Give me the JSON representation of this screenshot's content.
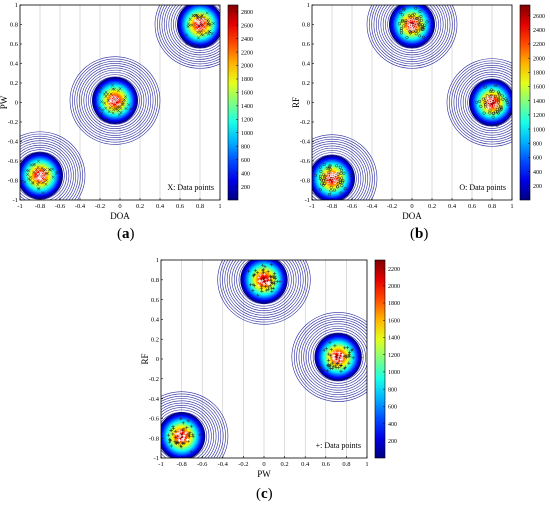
{
  "chart_data": [
    {
      "panel": "a",
      "caption_open": "(",
      "caption_letter": "a",
      "caption_close": ")",
      "type": "heatmap",
      "title": "",
      "xlabel": "DOA",
      "ylabel": "PW",
      "xlim": [
        -1,
        1
      ],
      "ylim": [
        -1,
        1
      ],
      "x_ticks": [
        "-1",
        "-0.8",
        "-0.6",
        "-0.4",
        "-0.2",
        "0",
        "0.2",
        "0.4",
        "0.6",
        "0.8",
        "1"
      ],
      "y_ticks": [
        "-1",
        "-0.8",
        "-0.6",
        "-0.4",
        "-0.2",
        "0",
        "0.2",
        "0.4",
        "0.6",
        "0.8",
        "1"
      ],
      "colorbar_ticks": [
        "200",
        "400",
        "600",
        "800",
        "1000",
        "1200",
        "1400",
        "1600",
        "1800",
        "2000",
        "2200",
        "2400",
        "2600",
        "2800"
      ],
      "colorbar_range": [
        0,
        2900
      ],
      "marker": "x",
      "legend": "X: Data points",
      "legend_position": "bottom-right",
      "clusters": [
        {
          "cx": -0.8,
          "cy": -0.75,
          "peak": 2850
        },
        {
          "cx": -0.05,
          "cy": 0.02,
          "peak": 2850
        },
        {
          "cx": 0.8,
          "cy": 0.8,
          "peak": 2850
        }
      ]
    },
    {
      "panel": "b",
      "caption_open": "(",
      "caption_letter": "b",
      "caption_close": ")",
      "type": "heatmap",
      "title": "",
      "xlabel": "DOA",
      "ylabel": "RF",
      "xlim": [
        -1,
        1
      ],
      "ylim": [
        -1,
        1
      ],
      "x_ticks": [
        "-1",
        "-0.8",
        "-0.6",
        "-0.4",
        "-0.2",
        "0",
        "0.2",
        "0.4",
        "0.6",
        "0.8",
        "1"
      ],
      "y_ticks": [
        "-1",
        "-0.8",
        "-0.6",
        "-0.4",
        "-0.2",
        "0",
        "0.2",
        "0.4",
        "0.6",
        "0.8",
        "1"
      ],
      "colorbar_ticks": [
        "200",
        "400",
        "600",
        "800",
        "1000",
        "1200",
        "1400",
        "1600",
        "1800",
        "2000",
        "2200",
        "2400",
        "2600"
      ],
      "colorbar_range": [
        0,
        2750
      ],
      "marker": "o",
      "legend": "O: Data points",
      "legend_position": "bottom-right",
      "clusters": [
        {
          "cx": -0.8,
          "cy": -0.78,
          "peak": 2700
        },
        {
          "cx": 0.0,
          "cy": 0.8,
          "peak": 2700
        },
        {
          "cx": 0.8,
          "cy": 0.0,
          "peak": 2700
        }
      ]
    },
    {
      "panel": "c",
      "caption_open": "(",
      "caption_letter": "c",
      "caption_close": ")",
      "type": "heatmap",
      "title": "",
      "xlabel": "PW",
      "ylabel": "RF",
      "xlim": [
        -1,
        1
      ],
      "ylim": [
        -1,
        1
      ],
      "x_ticks": [
        "-1",
        "-0.8",
        "-0.6",
        "-0.4",
        "-0.2",
        "0",
        "0.2",
        "0.4",
        "0.6",
        "0.8",
        "1"
      ],
      "y_ticks": [
        "-1",
        "-0.8",
        "-0.6",
        "-0.4",
        "-0.2",
        "0",
        "0.2",
        "0.4",
        "0.6",
        "0.8",
        "1"
      ],
      "colorbar_ticks": [
        "200",
        "400",
        "600",
        "800",
        "1000",
        "1200",
        "1400",
        "1600",
        "1800",
        "2000",
        "2200"
      ],
      "colorbar_range": [
        0,
        2300
      ],
      "marker": "+",
      "legend": "+: Data points",
      "legend_position": "bottom-right",
      "clusters": [
        {
          "cx": -0.8,
          "cy": -0.78,
          "peak": 2250
        },
        {
          "cx": 0.0,
          "cy": 0.8,
          "peak": 2250
        },
        {
          "cx": 0.72,
          "cy": 0.02,
          "peak": 2250
        }
      ]
    }
  ]
}
